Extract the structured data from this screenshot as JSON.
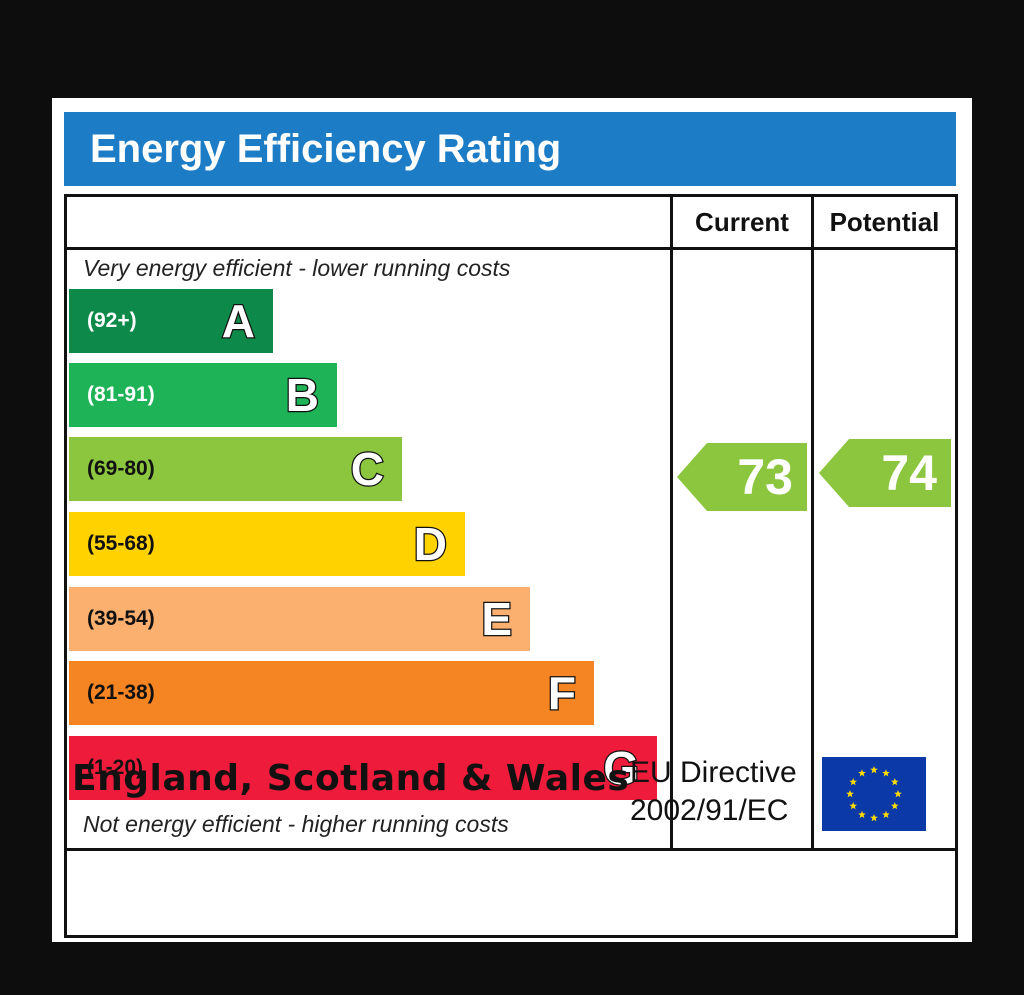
{
  "title": "Energy Efficiency Rating",
  "columns": {
    "current": "Current",
    "potential": "Potential"
  },
  "notes": {
    "top": "Very energy efficient - lower running costs",
    "bottom": "Not energy efficient - higher running costs"
  },
  "footer": {
    "region": "England, Scotland & Wales",
    "directive_line1": "EU Directive",
    "directive_line2": "2002/91/EC",
    "flag_icon": "eu-flag-icon"
  },
  "colors": {
    "title_bar": "#1c7cc6",
    "A": "#0d8a4a",
    "B": "#1db356",
    "C": "#8cc63f",
    "D": "#ffd200",
    "E": "#fcb070",
    "F": "#f58423",
    "G": "#ee1c3a",
    "flag": "#0b3aa8",
    "stars": "#ffdd00"
  },
  "chart_data": {
    "type": "bar",
    "categories": [
      "A",
      "B",
      "C",
      "D",
      "E",
      "F",
      "G"
    ],
    "ranges": [
      "(92+)",
      "(81-91)",
      "(69-80)",
      "(55-68)",
      "(39-54)",
      "(21-38)",
      "(1-20)"
    ],
    "range_text_color": [
      "#ffffff",
      "#ffffff",
      "#111111",
      "#111111",
      "#111111",
      "#111111",
      "#111111"
    ],
    "current": 73,
    "potential": 74,
    "current_band": "C",
    "potential_band": "C"
  }
}
